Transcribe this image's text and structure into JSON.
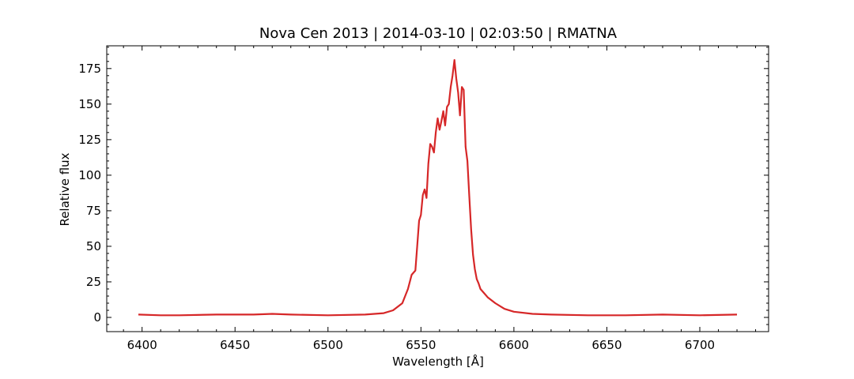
{
  "chart_data": {
    "type": "line",
    "title": "Nova Cen 2013 | 2014-03-10 | 02:03:50 | RMATNA",
    "xlabel": "Wavelength [Å]",
    "ylabel": "Relative flux",
    "xlim": [
      6381,
      6737
    ],
    "ylim": [
      -10,
      191
    ],
    "xticks": [
      6400,
      6450,
      6500,
      6550,
      6600,
      6650,
      6700
    ],
    "yticks": [
      0,
      25,
      50,
      75,
      100,
      125,
      150,
      175
    ],
    "grid": false,
    "series": [
      {
        "color": "#d62728",
        "x": [
          6398,
          6410,
          6420,
          6440,
          6460,
          6470,
          6480,
          6500,
          6520,
          6530,
          6535,
          6540,
          6543,
          6545,
          6547,
          6548,
          6549,
          6550,
          6551,
          6552,
          6553,
          6554,
          6555,
          6556,
          6557,
          6558,
          6559,
          6560,
          6561,
          6562,
          6563,
          6564,
          6565,
          6566,
          6567,
          6568,
          6569,
          6570,
          6571,
          6572,
          6573,
          6574,
          6575,
          6576,
          6577,
          6578,
          6579,
          6580,
          6581,
          6582,
          6584,
          6586,
          6590,
          6595,
          6600,
          6610,
          6620,
          6640,
          6660,
          6680,
          6700,
          6720
        ],
        "y": [
          2,
          1.5,
          1.5,
          2,
          2,
          2.5,
          2,
          1.5,
          2,
          3,
          5,
          10,
          20,
          30,
          33,
          50,
          68,
          72,
          86,
          90,
          84,
          108,
          122,
          120,
          116,
          130,
          140,
          132,
          138,
          145,
          135,
          148,
          150,
          162,
          170,
          181,
          168,
          158,
          142,
          162,
          160,
          120,
          110,
          85,
          62,
          44,
          34,
          27,
          24,
          20,
          17,
          14,
          10,
          6,
          4,
          2.5,
          2,
          1.5,
          1.5,
          2,
          1.5,
          2
        ]
      }
    ]
  }
}
